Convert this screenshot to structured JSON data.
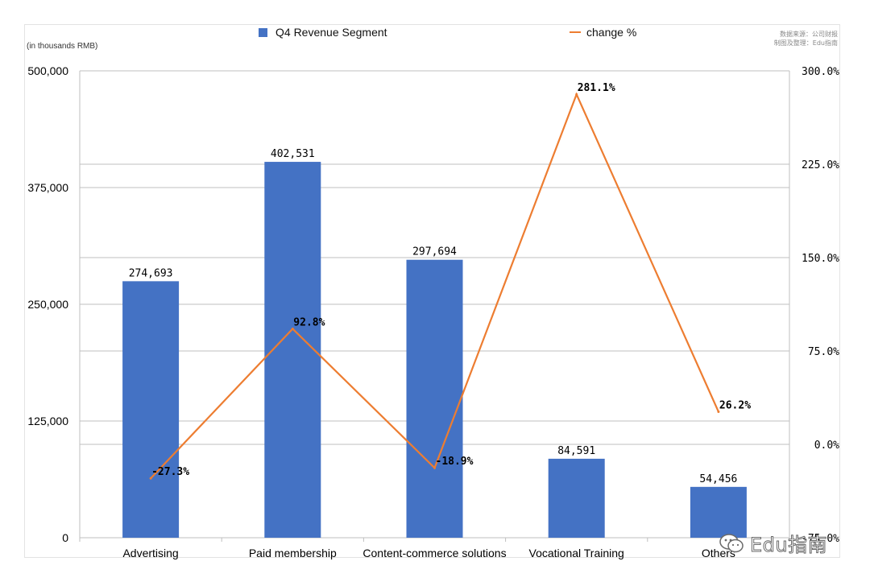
{
  "unit_note": "(in thousands RMB)",
  "source_note": {
    "line1": "数据来源：公司财报",
    "line2": "制图及整理：Edu指南"
  },
  "watermark": {
    "text": "Edu指南",
    "icon": "wechat-icon"
  },
  "colors": {
    "bar": "#4472C4",
    "line": "#ED7D31",
    "grid": "#bfbfbf",
    "axis_text": "#000000"
  },
  "chart_data": {
    "type": "bar",
    "categories": [
      "Advertising",
      "Paid membership",
      "Content-commerce solutions",
      "Vocational Training",
      "Others"
    ],
    "series": [
      {
        "name": "Q4 Revenue Segment",
        "type": "bar",
        "axis": "left",
        "values": [
          274693,
          402531,
          297694,
          84591,
          54456
        ],
        "labels": [
          "274,693",
          "402,531",
          "297,694",
          "84,591",
          "54,456"
        ]
      },
      {
        "name": "change %",
        "type": "line",
        "axis": "right",
        "values": [
          -27.3,
          92.8,
          -18.9,
          281.1,
          26.2
        ],
        "labels": [
          "-27.3%",
          "92.8%",
          "-18.9%",
          "281.1%",
          "26.2%"
        ]
      }
    ],
    "y_left": {
      "min": 0,
      "max": 500000,
      "ticks": [
        0,
        125000,
        250000,
        375000,
        500000
      ],
      "tick_labels": [
        "0",
        "125,000",
        "250,000",
        "375,000",
        "500,000"
      ]
    },
    "y_right": {
      "min": -75,
      "max": 300,
      "ticks": [
        -75,
        0,
        75,
        150,
        225,
        300
      ],
      "tick_labels": [
        "-75.0%",
        "0.0%",
        "75.0%",
        "150.0%",
        "225.0%",
        "300.0%"
      ]
    },
    "legend_position": "top",
    "grid": true
  }
}
